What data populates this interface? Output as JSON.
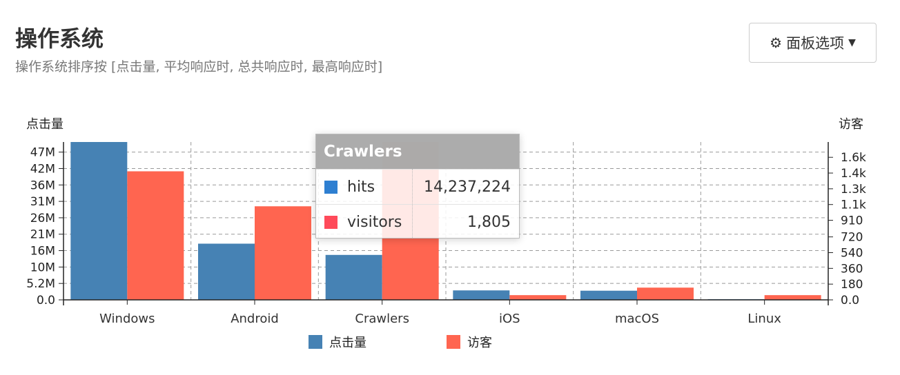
{
  "header": {
    "title": "操作系统",
    "subtitle": "操作系统排序按 [点击量, 平均响应时, 总共响应时, 最高响应时]"
  },
  "panel_button": {
    "label": "面板选项",
    "icon": "gear-icon",
    "caret": "caret-down-icon"
  },
  "colors": {
    "hits": "#4682b4",
    "visitors": "#ff6550"
  },
  "tooltip": {
    "title": "Crawlers",
    "rows": [
      {
        "name": "hits",
        "value": "14,237,224",
        "color": "#2e7fd1"
      },
      {
        "name": "visitors",
        "value": "1,805",
        "color": "#ff4a5a"
      }
    ]
  },
  "chart_data": {
    "type": "bar",
    "categories": [
      "Windows",
      "Android",
      "Crawlers",
      "iOS",
      "macOS",
      "Linux"
    ],
    "series": [
      {
        "name": "点击量",
        "axis": "left",
        "values": [
          50000000,
          17800000,
          14237224,
          3000000,
          2900000,
          200000
        ]
      },
      {
        "name": "访客",
        "axis": "right",
        "values": [
          1470,
          1070,
          1805,
          54,
          140,
          54
        ]
      }
    ],
    "ylabel_left": "点击量",
    "ylabel_right": "访客",
    "ylim_left": [
      0,
      50000000
    ],
    "ylim_right": [
      0,
      1805
    ],
    "yticks_left": [
      {
        "value": 0,
        "label": "0.0"
      },
      {
        "value": 5200000,
        "label": "5.2M"
      },
      {
        "value": 10400000,
        "label": "10M"
      },
      {
        "value": 15600000,
        "label": "16M"
      },
      {
        "value": 20800000,
        "label": "21M"
      },
      {
        "value": 26000000,
        "label": "26M"
      },
      {
        "value": 31200000,
        "label": "31M"
      },
      {
        "value": 36400000,
        "label": "36M"
      },
      {
        "value": 41600000,
        "label": "42M"
      },
      {
        "value": 46800000,
        "label": "47M"
      }
    ],
    "yticks_right": [
      {
        "value": 0,
        "label": "0.0"
      },
      {
        "value": 180,
        "label": "180"
      },
      {
        "value": 360,
        "label": "360"
      },
      {
        "value": 540,
        "label": "540"
      },
      {
        "value": 720,
        "label": "720"
      },
      {
        "value": 910,
        "label": "910"
      },
      {
        "value": 1090,
        "label": "1.1k"
      },
      {
        "value": 1270,
        "label": "1.3k"
      },
      {
        "value": 1450,
        "label": "1.4k"
      },
      {
        "value": 1630,
        "label": "1.6k"
      }
    ],
    "grid": true,
    "legend_position": "bottom"
  }
}
